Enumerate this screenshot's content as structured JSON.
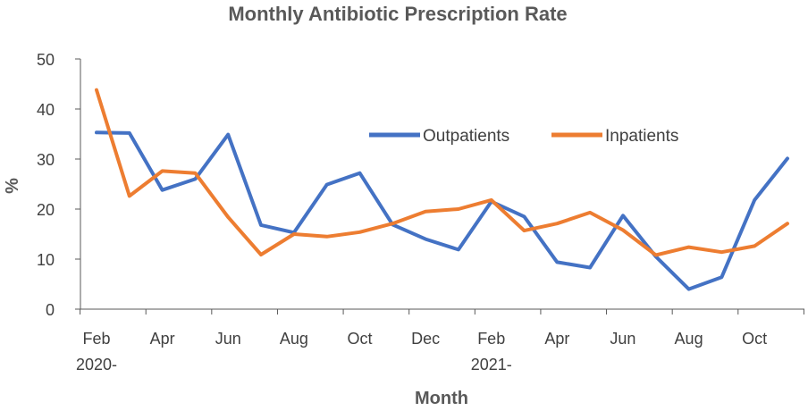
{
  "chart_data": {
    "type": "line",
    "title": "Monthly Antibiotic Prescription Rate",
    "xlabel": "Month",
    "ylabel": "%",
    "ylim": [
      0,
      50
    ],
    "yticks": [
      0,
      10,
      20,
      30,
      40,
      50
    ],
    "grid": false,
    "legend_position": "top-right",
    "x": [
      "2020-02",
      "2020-03",
      "2020-04",
      "2020-05",
      "2020-06",
      "2020-07",
      "2020-08",
      "2020-09",
      "2020-10",
      "2020-11",
      "2020-12",
      "2021-01",
      "2021-02",
      "2021-03",
      "2021-04",
      "2021-05",
      "2021-06",
      "2021-07",
      "2021-08",
      "2021-09",
      "2021-10",
      "2021-11"
    ],
    "x_tick_labels": [
      {
        "index": 0,
        "line1": "Feb",
        "line2": "2020-"
      },
      {
        "index": 2,
        "line1": "Apr",
        "line2": ""
      },
      {
        "index": 4,
        "line1": "Jun",
        "line2": ""
      },
      {
        "index": 6,
        "line1": "Aug",
        "line2": ""
      },
      {
        "index": 8,
        "line1": "Oct",
        "line2": ""
      },
      {
        "index": 10,
        "line1": "Dec",
        "line2": ""
      },
      {
        "index": 12,
        "line1": "Feb",
        "line2": "2021-"
      },
      {
        "index": 14,
        "line1": "Apr",
        "line2": ""
      },
      {
        "index": 16,
        "line1": "Jun",
        "line2": ""
      },
      {
        "index": 18,
        "line1": "Aug",
        "line2": ""
      },
      {
        "index": 20,
        "line1": "Oct",
        "line2": ""
      }
    ],
    "series": [
      {
        "name": "Outpatients",
        "color": "#4472C4",
        "values": [
          35.3,
          35.2,
          23.8,
          26.0,
          34.9,
          16.8,
          15.3,
          24.9,
          27.2,
          16.9,
          14.0,
          11.9,
          21.5,
          18.5,
          9.4,
          8.3,
          18.7,
          10.5,
          4.0,
          6.4,
          21.8,
          30.1
        ]
      },
      {
        "name": "Inpatients",
        "color": "#ED7D31",
        "values": [
          43.8,
          22.6,
          27.6,
          27.2,
          18.4,
          10.9,
          15.0,
          14.5,
          15.4,
          17.1,
          19.5,
          20.0,
          21.8,
          15.7,
          17.1,
          19.3,
          15.8,
          10.8,
          12.4,
          11.4,
          12.6,
          17.1
        ]
      }
    ]
  }
}
